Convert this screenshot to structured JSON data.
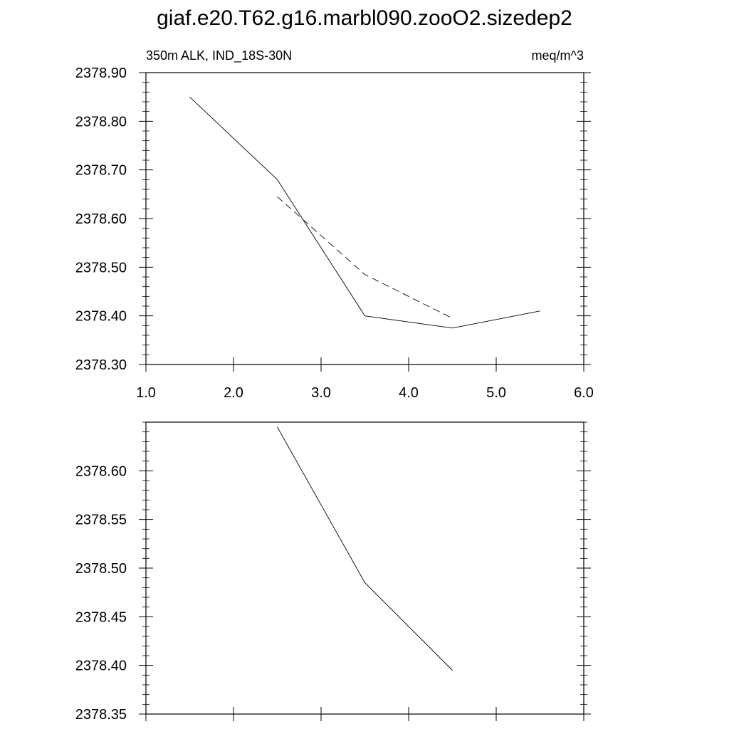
{
  "figure": {
    "title": "giaf.e20.T62.g16.marbl090.zooO2.sizedep2"
  },
  "chart_data": [
    {
      "type": "line",
      "subtitle_left": "350m ALK, IND_18S-30N",
      "subtitle_right": "meq/m^3",
      "xlim": [
        1.0,
        6.0
      ],
      "ylim": [
        2378.3,
        2378.9
      ],
      "x_ticks": [
        1.0,
        2.0,
        3.0,
        4.0,
        5.0,
        6.0
      ],
      "x_tick_labels": [
        "1.0",
        "2.0",
        "3.0",
        "4.0",
        "5.0",
        "6.0"
      ],
      "y_ticks": [
        2378.3,
        2378.4,
        2378.5,
        2378.6,
        2378.7,
        2378.8,
        2378.9
      ],
      "y_tick_labels": [
        "2378.30",
        "2378.40",
        "2378.50",
        "2378.60",
        "2378.70",
        "2378.80",
        "2378.90"
      ],
      "grid": false,
      "series": [
        {
          "style": "solid",
          "color": "#000000",
          "x": [
            1.5,
            2.5,
            3.5,
            4.5,
            5.5
          ],
          "y": [
            2378.85,
            2378.68,
            2378.4,
            2378.375,
            2378.41
          ]
        },
        {
          "style": "dashed",
          "color": "#000000",
          "x": [
            2.5,
            3.5,
            4.5
          ],
          "y": [
            2378.645,
            2378.485,
            2378.395
          ]
        }
      ]
    },
    {
      "type": "line",
      "xlim": [
        1.0,
        6.0
      ],
      "ylim": [
        2378.35,
        2378.65
      ],
      "x_ticks": [
        1.0,
        2.0,
        3.0,
        4.0,
        5.0,
        6.0
      ],
      "y_ticks": [
        2378.35,
        2378.4,
        2378.45,
        2378.5,
        2378.55,
        2378.6
      ],
      "y_tick_labels": [
        "2378.35",
        "2378.40",
        "2378.45",
        "2378.50",
        "2378.55",
        "2378.60"
      ],
      "grid": false,
      "series": [
        {
          "style": "solid",
          "color": "#000000",
          "x": [
            2.5,
            3.5,
            4.5
          ],
          "y": [
            2378.645,
            2378.485,
            2378.395
          ]
        }
      ]
    }
  ]
}
